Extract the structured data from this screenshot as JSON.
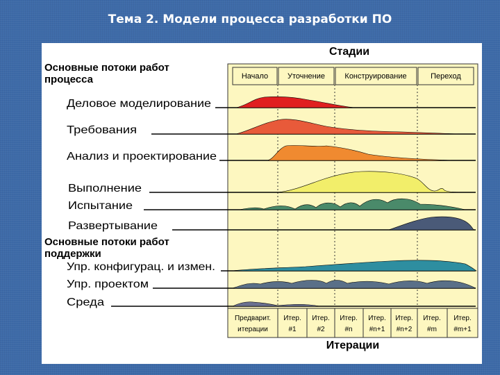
{
  "slide_title": "Тема 2. Модели процесса разработки ПО",
  "stages_heading": "Стадии",
  "iterations_heading": "Итерации",
  "process_group_title": [
    "Основные потоки работ",
    "процесса"
  ],
  "support_group_title": [
    "Основные потоки работ",
    "поддержки"
  ],
  "phases": [
    "Начало",
    "Уточнение",
    "Конструирование",
    "Переход"
  ],
  "iterations": [
    [
      "Предварит.",
      "итерации"
    ],
    [
      "Итер.",
      "#1"
    ],
    [
      "Итер.",
      "#2"
    ],
    [
      "Итер.",
      "#n"
    ],
    [
      "Итер.",
      "#n+1"
    ],
    [
      "Итер.",
      "#n+2"
    ],
    [
      "Итер.",
      "#m"
    ],
    [
      "Итер.",
      "#m+1"
    ]
  ],
  "process_workflows": [
    {
      "label": "Деловое моделирование",
      "color": "#e02020"
    },
    {
      "label": "Требования",
      "color": "#e85a3a"
    },
    {
      "label": "Анализ и проектирование",
      "color": "#f08a30"
    },
    {
      "label": "Выполнение",
      "color": "#f2ee6a"
    },
    {
      "label": "Испытание",
      "color": "#4a8a6a"
    },
    {
      "label": "Развертывание",
      "color": "#4a5a78"
    }
  ],
  "support_workflows": [
    {
      "label": "Упр. конфигурац. и измен.",
      "color": "#2e8ea0"
    },
    {
      "label": "Упр. проектом",
      "color": "#5a7088"
    },
    {
      "label": "Среда",
      "color": "#6a7090"
    }
  ],
  "colors": {
    "background": "#3d6aa8",
    "chart_fill": "#fdf7c0"
  }
}
